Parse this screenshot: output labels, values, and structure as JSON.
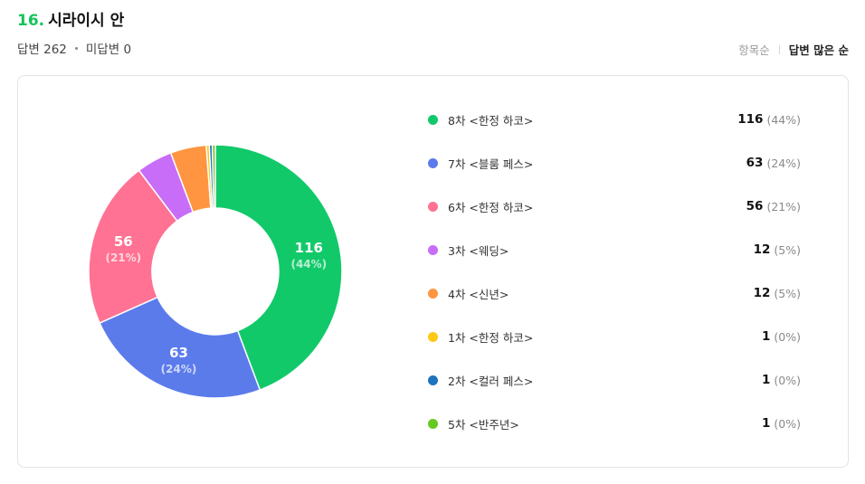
{
  "question": {
    "number": "16.",
    "title": "시라이시 안"
  },
  "meta": {
    "answered_label": "답변 262",
    "unanswered_label": "미답변 0"
  },
  "sort": {
    "by_item": "항목순",
    "by_most": "답변 많은 순",
    "active": "by_most"
  },
  "chart_data": {
    "type": "pie",
    "variant": "donut",
    "categories": [
      "8차 <한정 하코>",
      "7차 <블룸 페스>",
      "6차 <한정 하코>",
      "3차 <웨딩>",
      "4차 <신년>",
      "1차 <한정 하코>",
      "2차 <컬러 페스>",
      "5차 <반주년>"
    ],
    "values": [
      116,
      63,
      56,
      12,
      12,
      1,
      1,
      1
    ],
    "percent_labels": [
      "(44%)",
      "(24%)",
      "(21%)",
      "(5%)",
      "(5%)",
      "(0%)",
      "(0%)",
      "(0%)"
    ],
    "colors": [
      "#12c96a",
      "#5b7beb",
      "#ff7293",
      "#c86df7",
      "#ff9540",
      "#ffc814",
      "#1e73be",
      "#66c91e"
    ],
    "legend": "right",
    "labeled_slices": [
      0,
      1,
      2
    ]
  }
}
